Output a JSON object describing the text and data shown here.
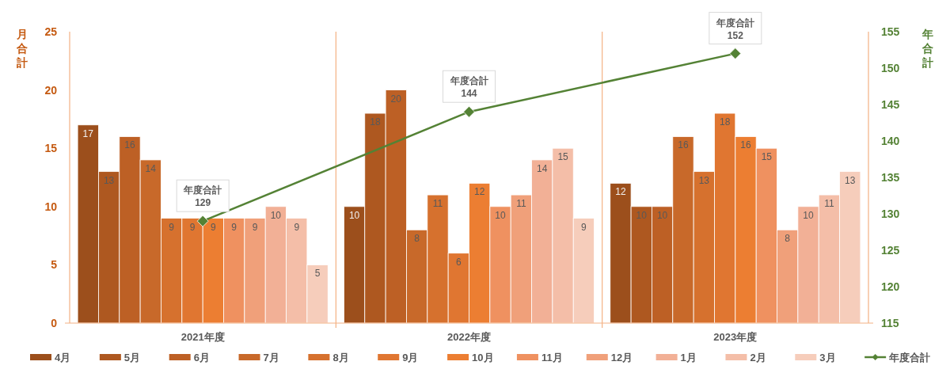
{
  "chart_data": {
    "type": "bar",
    "categories": [
      "2021年度",
      "2022年度",
      "2023年度"
    ],
    "ylabel": "月合計",
    "y2label": "年合計",
    "ylim": [
      0,
      25
    ],
    "yticks": [
      0,
      5,
      10,
      15,
      20,
      25
    ],
    "y2lim": [
      115,
      155
    ],
    "y2ticks": [
      115,
      120,
      125,
      130,
      135,
      140,
      145,
      150,
      155
    ],
    "grid": "x",
    "legend": "bottom",
    "data_labels": true,
    "series": [
      {
        "name": "4月",
        "color": "#9c4f1c",
        "values": [
          17,
          10,
          12
        ]
      },
      {
        "name": "5月",
        "color": "#ae5820",
        "values": [
          13,
          18,
          10
        ]
      },
      {
        "name": "6月",
        "color": "#bd6025",
        "values": [
          16,
          20,
          10
        ]
      },
      {
        "name": "7月",
        "color": "#c8692a",
        "values": [
          14,
          8,
          16
        ]
      },
      {
        "name": "8月",
        "color": "#d6712e",
        "values": [
          9,
          11,
          13
        ]
      },
      {
        "name": "9月",
        "color": "#e07631",
        "values": [
          9,
          6,
          18
        ]
      },
      {
        "name": "10月",
        "color": "#ec7e32",
        "values": [
          9,
          12,
          16
        ]
      },
      {
        "name": "11月",
        "color": "#ef9160",
        "values": [
          9,
          10,
          15
        ]
      },
      {
        "name": "12月",
        "color": "#f0a07a",
        "values": [
          9,
          11,
          8
        ]
      },
      {
        "name": "1月",
        "color": "#f2b096",
        "values": [
          10,
          14,
          10
        ]
      },
      {
        "name": "2月",
        "color": "#f4bea8",
        "values": [
          9,
          15,
          11
        ]
      },
      {
        "name": "3月",
        "color": "#f6cdbb",
        "values": [
          5,
          9,
          13
        ]
      },
      {
        "name": "年度合計",
        "type": "line",
        "axis": "y2",
        "color": "#548235",
        "marker": "diamond",
        "values": [
          129,
          144,
          152
        ],
        "value_labels": [
          "年度合計\n129",
          "年度合計\n144",
          "年度合計\n152"
        ]
      }
    ]
  }
}
